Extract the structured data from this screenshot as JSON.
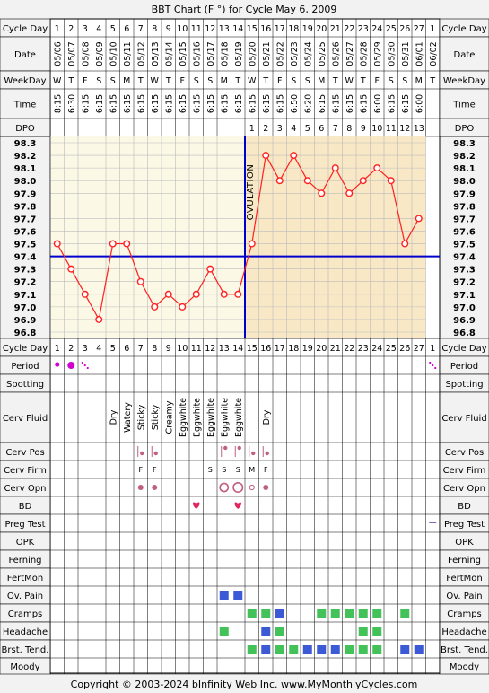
{
  "title": "BBT Chart (F °) for Cycle May 6, 2009",
  "copyright": "Copyright © 2003-2024 bInfinity Web Inc.    www.MyMonthlyCycles.com",
  "ovulation_label": "OVULATION",
  "row_labels": {
    "cycle_day": "Cycle Day",
    "date": "Date",
    "weekday": "WeekDay",
    "time": "Time",
    "dpo": "DPO",
    "period": "Period",
    "spotting": "Spotting",
    "cerv_fluid": "Cerv Fluid",
    "cerv_pos": "Cerv Pos",
    "cerv_firm": "Cerv Firm",
    "cerv_opn": "Cerv Opn",
    "bd": "BD",
    "preg_test": "Preg Test",
    "opk": "OPK",
    "ferning": "Ferning",
    "fertmon": "FertMon",
    "ov_pain": "Ov. Pain",
    "cramps": "Cramps",
    "headache": "Headache",
    "brst_tend": "Brst. Tend.",
    "moody": "Moody"
  },
  "days": {
    "cycle_day": [
      "1",
      "2",
      "3",
      "4",
      "5",
      "6",
      "7",
      "8",
      "9",
      "10",
      "11",
      "12",
      "13",
      "14",
      "15",
      "16",
      "17",
      "18",
      "19",
      "20",
      "21",
      "22",
      "23",
      "24",
      "25",
      "26",
      "27",
      "1"
    ],
    "date": [
      "05/06",
      "05/07",
      "05/08",
      "05/09",
      "05/10",
      "05/11",
      "05/12",
      "05/13",
      "05/14",
      "05/15",
      "05/16",
      "05/17",
      "05/18",
      "05/19",
      "05/20",
      "05/21",
      "05/22",
      "05/23",
      "05/24",
      "05/25",
      "05/26",
      "05/27",
      "05/28",
      "05/29",
      "05/30",
      "05/31",
      "06/01",
      "06/02"
    ],
    "weekday": [
      "W",
      "T",
      "F",
      "S",
      "S",
      "M",
      "T",
      "W",
      "T",
      "F",
      "S",
      "S",
      "M",
      "T",
      "W",
      "T",
      "F",
      "S",
      "S",
      "M",
      "T",
      "W",
      "T",
      "F",
      "S",
      "S",
      "M",
      "T"
    ],
    "time": [
      "8:15",
      "6:30",
      "6:15",
      "6:15",
      "6:15",
      "6:15",
      "6:15",
      "6:15",
      "6:15",
      "6:15",
      "6:15",
      "6:15",
      "6:15",
      "6:15",
      "6:15",
      "6:15",
      "6:15",
      "6:50",
      "6:20",
      "6:15",
      "6:15",
      "6:15",
      "6:15",
      "6:00",
      "6:15",
      "6:15",
      "6:00",
      ""
    ],
    "dpo": [
      "",
      "",
      "",
      "",
      "",
      "",
      "",
      "",
      "",
      "",
      "",
      "",
      "",
      "",
      "1",
      "2",
      "3",
      "4",
      "5",
      "6",
      "7",
      "8",
      "9",
      "10",
      "11",
      "12",
      "13",
      ""
    ],
    "cerv_fluid": [
      "",
      "",
      "",
      "",
      "Dry",
      "Watery",
      "Sticky",
      "Sticky",
      "Creamy",
      "Eggwhite",
      "Eggwhite",
      "Eggwhite",
      "Eggwhite",
      "Eggwhite",
      "",
      "Dry",
      "",
      "",
      "",
      "",
      "",
      "",
      "",
      "",
      "",
      "",
      "",
      ""
    ],
    "cerv_firm": [
      "",
      "",
      "",
      "",
      "",
      "",
      "F",
      "F",
      "",
      "",
      "",
      "S",
      "S",
      "S",
      "M",
      "F",
      "",
      "",
      "",
      "",
      "",
      "",
      "",
      "",
      "",
      "",
      "",
      ""
    ]
  },
  "period": [
    2,
    3,
    1,
    0,
    0,
    0,
    0,
    0,
    0,
    0,
    0,
    0,
    0,
    0,
    0,
    0,
    0,
    0,
    0,
    0,
    0,
    0,
    0,
    0,
    0,
    0,
    0,
    1
  ],
  "cerv_pos": [
    0,
    0,
    0,
    0,
    0,
    0,
    1,
    1,
    0,
    0,
    0,
    0,
    2,
    2,
    1,
    1,
    0,
    0,
    0,
    0,
    0,
    0,
    0,
    0,
    0,
    0,
    0,
    0
  ],
  "cerv_opn": [
    0,
    0,
    0,
    0,
    0,
    0,
    1,
    1,
    0,
    0,
    0,
    0,
    2,
    3,
    4,
    1,
    0,
    0,
    0,
    0,
    0,
    0,
    0,
    0,
    0,
    0,
    0,
    0
  ],
  "bd": [
    0,
    0,
    0,
    0,
    0,
    0,
    0,
    0,
    0,
    0,
    1,
    0,
    0,
    1,
    0,
    0,
    0,
    0,
    0,
    0,
    0,
    0,
    0,
    0,
    0,
    0,
    0,
    0
  ],
  "preg_test": [
    0,
    0,
    0,
    0,
    0,
    0,
    0,
    0,
    0,
    0,
    0,
    0,
    0,
    0,
    0,
    0,
    0,
    0,
    0,
    0,
    0,
    0,
    0,
    0,
    0,
    0,
    0,
    1
  ],
  "ov_pain": [
    0,
    0,
    0,
    0,
    0,
    0,
    0,
    0,
    0,
    0,
    0,
    0,
    1,
    1,
    0,
    0,
    0,
    0,
    0,
    0,
    0,
    0,
    0,
    0,
    0,
    0,
    0,
    0
  ],
  "cramps": [
    0,
    0,
    0,
    0,
    0,
    0,
    0,
    0,
    0,
    0,
    0,
    0,
    0,
    0,
    1,
    1,
    2,
    0,
    0,
    1,
    1,
    1,
    1,
    1,
    0,
    1,
    0,
    0
  ],
  "headache": [
    0,
    0,
    0,
    0,
    0,
    0,
    0,
    0,
    0,
    0,
    0,
    0,
    1,
    0,
    0,
    2,
    1,
    0,
    0,
    0,
    0,
    0,
    1,
    1,
    0,
    0,
    0,
    0
  ],
  "brst_tend": [
    0,
    0,
    0,
    0,
    0,
    0,
    0,
    0,
    0,
    0,
    0,
    0,
    0,
    0,
    1,
    2,
    1,
    1,
    2,
    2,
    2,
    1,
    1,
    1,
    0,
    2,
    2,
    0
  ],
  "colors": {
    "period": "#d100d1",
    "mark_green": "#44c25a",
    "mark_blue": "#3c5ad6",
    "line": "#ff2020",
    "coverline": "#0000cc",
    "pre_bg": "#fbf8e6",
    "post_bg": "#f8e8c6",
    "bd": "#e0245e",
    "preg_test": "#6a3d9a",
    "cerv_mark": "#c06080"
  },
  "chart_data": {
    "type": "line",
    "title": "BBT Chart (F °) for Cycle May 6, 2009",
    "x": [
      "1",
      "2",
      "3",
      "4",
      "5",
      "6",
      "7",
      "8",
      "9",
      "10",
      "11",
      "12",
      "13",
      "14",
      "15",
      "16",
      "17",
      "18",
      "19",
      "20",
      "21",
      "22",
      "23",
      "24",
      "25",
      "26",
      "27"
    ],
    "series": [
      {
        "values": [
          97.5,
          97.3,
          97.1,
          96.9,
          97.5,
          97.5,
          97.2,
          97.0,
          97.1,
          97.0,
          97.1,
          97.3,
          97.1,
          97.1,
          97.5,
          98.2,
          98.0,
          98.2,
          98.0,
          97.9,
          98.1,
          97.9,
          98.0,
          98.1,
          98.0,
          97.5,
          97.7
        ]
      }
    ],
    "ylim": [
      96.8,
      98.3
    ],
    "yticks": [
      "98.3",
      "98.2",
      "98.1",
      "98.0",
      "97.9",
      "97.8",
      "97.7",
      "97.6",
      "97.5",
      "97.4",
      "97.3",
      "97.2",
      "97.1",
      "97.0",
      "96.9",
      "96.8"
    ],
    "coverline": 97.4,
    "ovulation_day": 14,
    "grid": true
  }
}
